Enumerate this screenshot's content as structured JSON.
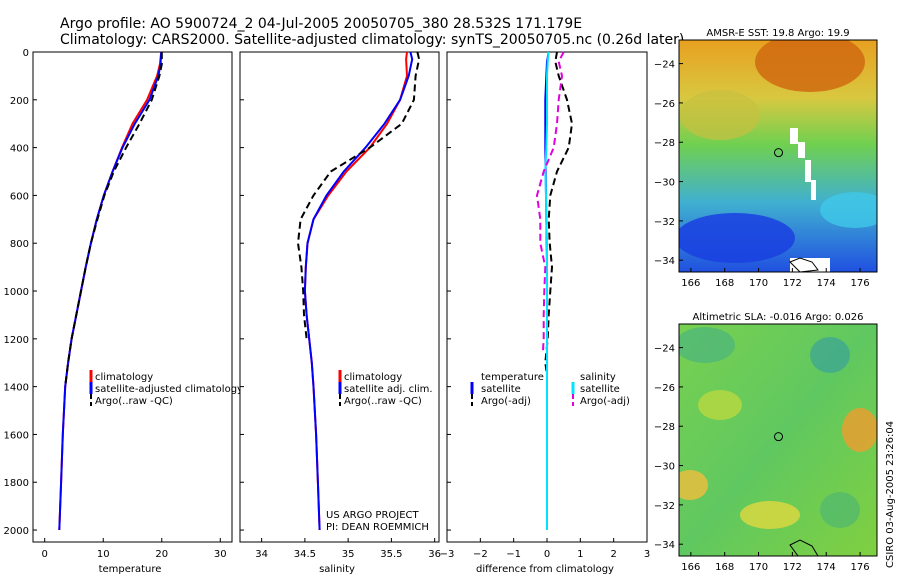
{
  "title_line1": "Argo profile: AO 5900724_2 04-Jul-2005 20050705_380 28.532S 171.179E",
  "title_line2": "Climatology: CARS2000. Satellite-adjusted climatology: synTS_20050705.nc (0.26d later)",
  "footer": {
    "project": "US ARGO PROJECT",
    "pi": "PI: DEAN ROEMMICH"
  },
  "side_label": "CSIRO 03-Aug-2005 23:26:04",
  "colors": {
    "climatology": "#ff0000",
    "satellite": "#0000ff",
    "argo": "#000000",
    "sal_satellite": "#00e5ff",
    "sal_argo": "#e000e0"
  },
  "chart_data": [
    {
      "type": "line",
      "xlabel": "temperature",
      "xlim": [
        -2,
        32
      ],
      "xticks": [
        0,
        10,
        20,
        30
      ],
      "ylim": [
        2050,
        0
      ],
      "yticks": [
        0,
        200,
        400,
        600,
        800,
        1000,
        1200,
        1400,
        1600,
        1800,
        2000
      ],
      "legend": [
        "climatology",
        "satellite-adjusted climatology",
        "Argo(..raw -QC)"
      ],
      "series": [
        {
          "name": "climatology",
          "role": "clim",
          "x": [
            19.9,
            19.7,
            19.2,
            17.5,
            15.0,
            13.2,
            11.6,
            10.1,
            8.9,
            7.9,
            7.0,
            6.2,
            5.4,
            4.6,
            4.0,
            3.5,
            3.1,
            2.8,
            2.5
          ],
          "y": [
            0,
            50,
            100,
            200,
            300,
            400,
            500,
            600,
            700,
            800,
            900,
            1000,
            1100,
            1200,
            1300,
            1400,
            1600,
            1800,
            2000
          ]
        },
        {
          "name": "satellite-adjusted climatology",
          "role": "sat",
          "x": [
            19.9,
            19.8,
            19.4,
            17.9,
            15.4,
            13.3,
            11.6,
            10.1,
            8.9,
            7.9,
            7.0,
            6.2,
            5.4,
            4.6,
            4.0,
            3.5,
            3.1,
            2.8,
            2.5
          ],
          "y": [
            0,
            50,
            100,
            200,
            300,
            400,
            500,
            600,
            700,
            800,
            900,
            1000,
            1100,
            1200,
            1300,
            1400,
            1600,
            1800,
            2000
          ]
        },
        {
          "name": "Argo(..raw -QC)",
          "role": "argo",
          "x": [
            20.0,
            20.0,
            19.6,
            18.3,
            16.2,
            13.9,
            11.8,
            10.2,
            9.0,
            7.9,
            7.0,
            6.2,
            5.4,
            4.6,
            4.0,
            3.5
          ],
          "y": [
            0,
            50,
            100,
            200,
            300,
            400,
            500,
            600,
            700,
            800,
            900,
            1000,
            1100,
            1200,
            1300,
            1400
          ]
        }
      ]
    },
    {
      "type": "line",
      "xlabel": "salinity",
      "xlim": [
        33.75,
        36.05
      ],
      "xticks": [
        34,
        34.5,
        35,
        35.5,
        36
      ],
      "ylim": [
        2050,
        0
      ],
      "legend": [
        "climatology",
        "satellite adj. clim.",
        "Argo(..raw -QC)"
      ],
      "series": [
        {
          "name": "climatology",
          "role": "clim",
          "x": [
            35.68,
            35.67,
            35.68,
            35.6,
            35.45,
            35.25,
            34.98,
            34.77,
            34.6,
            34.53,
            34.51,
            34.5,
            34.52,
            34.55,
            34.58,
            34.6,
            34.63,
            34.65,
            34.67
          ],
          "y": [
            0,
            30,
            100,
            200,
            300,
            400,
            500,
            600,
            700,
            800,
            900,
            1000,
            1100,
            1200,
            1300,
            1400,
            1600,
            1800,
            2000
          ]
        },
        {
          "name": "satellite adj. clim.",
          "role": "sat",
          "x": [
            35.72,
            35.74,
            35.7,
            35.6,
            35.42,
            35.2,
            34.95,
            34.75,
            34.6,
            34.53,
            34.51,
            34.5,
            34.52,
            34.55,
            34.58,
            34.6,
            34.63,
            34.65,
            34.67
          ],
          "y": [
            0,
            30,
            100,
            200,
            300,
            400,
            500,
            600,
            700,
            800,
            900,
            1000,
            1100,
            1200,
            1300,
            1400,
            1600,
            1800,
            2000
          ]
        },
        {
          "name": "Argo(..raw -QC)",
          "role": "argo",
          "x": [
            35.8,
            35.82,
            35.78,
            35.76,
            35.62,
            35.25,
            34.8,
            34.6,
            34.45,
            34.42,
            34.46,
            34.48,
            34.49,
            34.52
          ],
          "y": [
            0,
            30,
            100,
            200,
            300,
            400,
            500,
            600,
            700,
            800,
            900,
            1000,
            1100,
            1200
          ]
        }
      ]
    },
    {
      "type": "line",
      "xlabel": "difference from climatology",
      "xlim": [
        -3,
        3
      ],
      "xticks": [
        -3,
        -2,
        -1,
        0,
        1,
        2,
        3
      ],
      "ylim": [
        2050,
        0
      ],
      "legend": [
        "temperature",
        "satellite",
        "Argo(-adj)",
        "salinity",
        "satellite",
        "Argo(-adj)"
      ],
      "series": [
        {
          "name": "satellite",
          "group": "temperature",
          "role": "sat",
          "x": [
            0.05,
            0.0,
            -0.02,
            -0.05,
            -0.05,
            -0.05,
            -0.04,
            -0.03,
            -0.02,
            -0.01,
            0.0,
            0.0,
            0.0,
            0.0,
            0.0,
            0.0,
            0.0
          ],
          "y": [
            0,
            40,
            100,
            200,
            300,
            400,
            500,
            600,
            700,
            800,
            900,
            1000,
            1100,
            1200,
            1300,
            1400,
            1600
          ]
        },
        {
          "name": "Argo(-adj)",
          "group": "temperature",
          "role": "argo",
          "x": [
            0.3,
            0.25,
            0.35,
            0.6,
            0.75,
            0.65,
            0.3,
            0.1,
            0.05,
            0.08,
            0.15,
            0.1,
            0.05,
            0.02,
            -0.05,
            0.0
          ],
          "y": [
            0,
            40,
            100,
            200,
            300,
            400,
            500,
            600,
            700,
            800,
            900,
            1000,
            1100,
            1200,
            1300,
            1350
          ]
        },
        {
          "name": "satellite",
          "group": "salinity",
          "role": "sat2",
          "x": [
            0.05,
            0.02,
            0.0,
            0.0,
            0.0,
            -0.02,
            -0.05,
            -0.03,
            -0.02,
            0.0,
            0.0,
            0.0,
            0.0,
            0.0,
            0.0,
            0.0,
            0.0,
            0.0,
            0.0
          ],
          "y": [
            0,
            40,
            100,
            200,
            300,
            400,
            500,
            600,
            700,
            800,
            900,
            1000,
            1100,
            1200,
            1300,
            1400,
            1600,
            1800,
            2000
          ]
        },
        {
          "name": "Argo(-adj)",
          "group": "salinity",
          "role": "argo2",
          "x": [
            0.5,
            0.35,
            0.45,
            0.35,
            0.3,
            0.2,
            -0.1,
            -0.3,
            -0.2,
            -0.2,
            -0.05,
            -0.08,
            -0.1,
            -0.1,
            -0.12
          ],
          "y": [
            0,
            40,
            100,
            200,
            300,
            400,
            500,
            600,
            700,
            800,
            900,
            1000,
            1100,
            1200,
            1250
          ]
        }
      ]
    },
    {
      "type": "heatmap",
      "title": "AMSR-E SST: 19.8 Argo: 19.9",
      "xlim": [
        165.3,
        177
      ],
      "ylim": [
        -34.6,
        -22.8
      ],
      "xticks": [
        166,
        168,
        170,
        172,
        174,
        176
      ],
      "yticks": [
        -24,
        -26,
        -28,
        -30,
        -32,
        -34
      ],
      "marker": {
        "lon": 171.18,
        "lat": -28.53
      }
    },
    {
      "type": "heatmap",
      "title": "Altimetric SLA: -0.016 Argo: 0.026",
      "xlim": [
        165.3,
        177
      ],
      "ylim": [
        -34.6,
        -22.8
      ],
      "xticks": [
        166,
        168,
        170,
        172,
        174,
        176
      ],
      "yticks": [
        -24,
        -26,
        -28,
        -30,
        -32,
        -34
      ],
      "marker": {
        "lon": 171.18,
        "lat": -28.53
      }
    }
  ]
}
